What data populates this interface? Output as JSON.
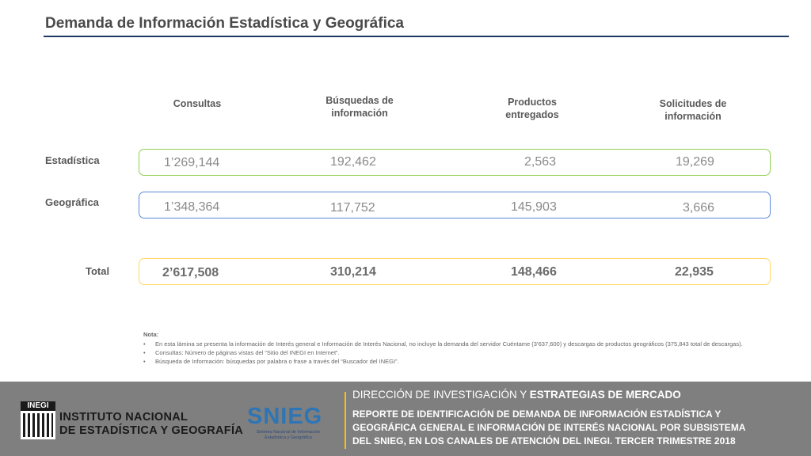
{
  "title": "Demanda de Información Estadística y Geográfica",
  "columns": [
    {
      "l1": "Consultas",
      "l2": ""
    },
    {
      "l1": "Búsquedas de",
      "l2": "información"
    },
    {
      "l1": "Productos",
      "l2": "entregados"
    },
    {
      "l1": "Solicitudes de",
      "l2": "información"
    }
  ],
  "rows": [
    {
      "label": "Estadística",
      "values": [
        "1’269,144",
        "192,462",
        "2,563",
        "19,269"
      ]
    },
    {
      "label": "Geográfica",
      "values": [
        "1’348,364",
        "117,752",
        "145,903",
        "3,666"
      ]
    },
    {
      "label": "Total",
      "values": [
        "2’617,508",
        "310,214",
        "148,466",
        "22,935"
      ]
    }
  ],
  "notes": {
    "header": "Nota:",
    "items": [
      "En esta lámina se presenta la información de Interés general e Información de Interés Nacional, no incluye la demanda del servidor Cuéntame (3’637,600) y descargas de productos geográficos (375,843 total de descargas).",
      "Consultas: Número de páginas vistas del “Sitio del INEGI en Internet”.",
      "Búsqueda de Información: búsquedas por palabra o frase a través del “Buscador del INEGI”."
    ]
  },
  "footer": {
    "inegi_logo_text": "INEGI",
    "inegi_line1": "INSTITUTO NACIONAL",
    "inegi_line2": "DE ESTADÍSTICA Y GEOGRAFÍA",
    "snieg_word": "SNIEG",
    "snieg_sub": "Sistema Nacional de Información Estadística y Geográfica",
    "heading_normal": "DIRECCIÓN DE INVESTIGACIÓN Y ",
    "heading_bold": "ESTRATEGIAS DE MERCADO",
    "report_l1": "REPORTE DE IDENTIFICACIÓN DE DEMANDA DE INFORMACIÓN ESTADÍSTICA  Y",
    "report_l2": "GEOGRÁFICA GENERAL E INFORMACIÓN DE INTERÉS NACIONAL POR SUBSISTEMA",
    "report_l3": "DEL SNIEG, EN LOS CANALES DE ATENCIÓN DEL INEGI. TERCER TRIMESTRE 2018"
  },
  "colors": {
    "estadistica_border": "#92d050",
    "geografica_border": "#5b8bd6",
    "total_border": "#ffd966",
    "title_rule": "#1f3864",
    "footer_bg": "#7f7f7f",
    "footer_divider": "#ffc000"
  }
}
